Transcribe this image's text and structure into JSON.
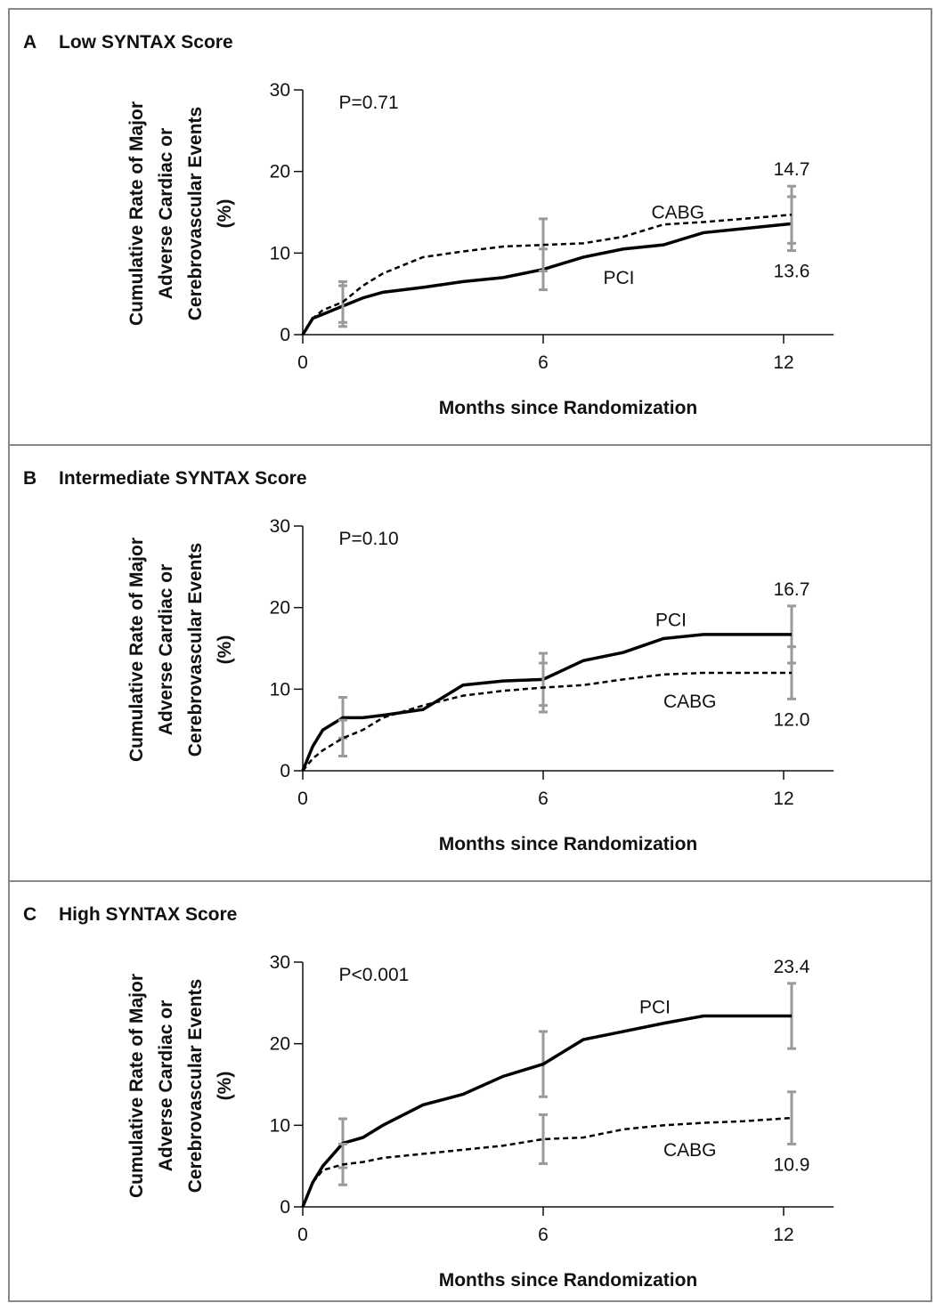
{
  "chart_data": [
    {
      "type": "line",
      "panel": "A",
      "title": "Low SYNTAX Score",
      "annotation": "P=0.71",
      "ylabel": [
        "Cumulative Rate of Major",
        "Adverse Cardiac or",
        "Cerebrovascular Events",
        "(%)"
      ],
      "xlabel": "Months since Randomization",
      "xlim": [
        0,
        13.25
      ],
      "xticks": [
        0,
        6,
        12
      ],
      "ylim": [
        0,
        30
      ],
      "yticks": [
        0,
        10,
        20,
        30
      ],
      "errorbar_color": "#9a9a9a",
      "x": [
        0,
        0.25,
        0.5,
        1,
        1.5,
        2,
        3,
        4,
        5,
        6,
        7,
        8,
        9,
        10,
        11,
        12.2
      ],
      "series": [
        {
          "name": "PCI",
          "color": "#000000",
          "line_style": "solid",
          "values": [
            0,
            2,
            2.5,
            3.5,
            4.5,
            5.2,
            5.8,
            6.5,
            7,
            8,
            9.5,
            10.5,
            11,
            12.5,
            13,
            13.6
          ],
          "errors": [
            null,
            null,
            null,
            2.5,
            null,
            null,
            null,
            null,
            null,
            2.5,
            null,
            null,
            null,
            null,
            null,
            3.3
          ],
          "value_labels": [
            null,
            null,
            null,
            null,
            null,
            null,
            null,
            null,
            null,
            null,
            null,
            null,
            null,
            null,
            null,
            "13.6"
          ]
        },
        {
          "name": "CABG",
          "color": "#000000",
          "line_style": "dashed",
          "values": [
            0,
            2,
            3,
            4,
            6,
            7.5,
            9.5,
            10.2,
            10.8,
            11,
            11.2,
            12,
            13.5,
            13.8,
            14.2,
            14.7
          ],
          "errors": [
            null,
            null,
            null,
            2.5,
            null,
            null,
            null,
            null,
            null,
            3.2,
            null,
            null,
            null,
            null,
            null,
            3.5
          ],
          "value_labels": [
            null,
            null,
            null,
            null,
            null,
            null,
            null,
            null,
            null,
            null,
            null,
            null,
            null,
            null,
            null,
            "14.7"
          ]
        }
      ]
    },
    {
      "type": "line",
      "panel": "B",
      "title": "Intermediate SYNTAX Score",
      "annotation": "P=0.10",
      "ylabel": [
        "Cumulative Rate of Major",
        "Adverse Cardiac or",
        "Cerebrovascular Events",
        "(%)"
      ],
      "xlabel": "Months since Randomization",
      "xlim": [
        0,
        13.25
      ],
      "xticks": [
        0,
        6,
        12
      ],
      "ylim": [
        0,
        30
      ],
      "yticks": [
        0,
        10,
        20,
        30
      ],
      "errorbar_color": "#9a9a9a",
      "x": [
        0,
        0.25,
        0.5,
        1,
        1.5,
        2,
        3,
        4,
        5,
        6,
        7,
        8,
        9,
        10,
        11,
        12.2
      ],
      "series": [
        {
          "name": "PCI",
          "color": "#000000",
          "line_style": "solid",
          "values": [
            0,
            3,
            5,
            6.5,
            6.5,
            6.8,
            7.5,
            10.5,
            11,
            11.2,
            13.5,
            14.5,
            16.2,
            16.7,
            16.7,
            16.7
          ],
          "errors": [
            null,
            null,
            null,
            2.5,
            null,
            null,
            null,
            null,
            null,
            3.2,
            null,
            null,
            null,
            null,
            null,
            3.5
          ],
          "value_labels": [
            null,
            null,
            null,
            null,
            null,
            null,
            null,
            null,
            null,
            null,
            null,
            null,
            null,
            null,
            null,
            "16.7"
          ]
        },
        {
          "name": "CABG",
          "color": "#000000",
          "line_style": "dashed",
          "values": [
            0,
            1.5,
            2.5,
            4,
            5,
            6.5,
            8,
            9.2,
            9.8,
            10.2,
            10.5,
            11.2,
            11.8,
            12,
            12,
            12
          ],
          "errors": [
            null,
            null,
            null,
            2.2,
            null,
            null,
            null,
            null,
            null,
            3,
            null,
            null,
            null,
            null,
            null,
            3.2
          ],
          "value_labels": [
            null,
            null,
            null,
            null,
            null,
            null,
            null,
            null,
            null,
            null,
            null,
            null,
            null,
            null,
            null,
            "12.0"
          ]
        }
      ]
    },
    {
      "type": "line",
      "panel": "C",
      "title": "High SYNTAX Score",
      "annotation": "P<0.001",
      "ylabel": [
        "Cumulative Rate of Major",
        "Adverse Cardiac or",
        "Cerebrovascular Events",
        "(%)"
      ],
      "xlabel": "Months since Randomization",
      "xlim": [
        0,
        13.25
      ],
      "xticks": [
        0,
        6,
        12
      ],
      "ylim": [
        0,
        30
      ],
      "yticks": [
        0,
        10,
        20,
        30
      ],
      "errorbar_color": "#9a9a9a",
      "x": [
        0,
        0.25,
        0.5,
        1,
        1.5,
        2,
        3,
        4,
        5,
        6,
        7,
        8,
        9,
        10,
        11,
        12.2
      ],
      "series": [
        {
          "name": "PCI",
          "color": "#000000",
          "line_style": "solid",
          "values": [
            0,
            3,
            5,
            7.8,
            8.5,
            10,
            12.5,
            13.8,
            16,
            17.5,
            20.5,
            21.5,
            22.5,
            23.4,
            23.4,
            23.4
          ],
          "errors": [
            null,
            null,
            null,
            3,
            null,
            null,
            null,
            null,
            null,
            4,
            null,
            null,
            null,
            null,
            null,
            4
          ],
          "value_labels": [
            null,
            null,
            null,
            null,
            null,
            null,
            null,
            null,
            null,
            null,
            null,
            null,
            null,
            null,
            null,
            "23.4"
          ]
        },
        {
          "name": "CABG",
          "color": "#000000",
          "line_style": "dashed",
          "values": [
            0,
            3,
            4.5,
            5.2,
            5.5,
            6,
            6.5,
            7,
            7.5,
            8.3,
            8.5,
            9.5,
            10,
            10.3,
            10.5,
            10.9
          ],
          "errors": [
            null,
            null,
            null,
            2.5,
            null,
            null,
            null,
            null,
            null,
            3,
            null,
            null,
            null,
            null,
            null,
            3.2
          ],
          "value_labels": [
            null,
            null,
            null,
            null,
            null,
            null,
            null,
            null,
            null,
            null,
            null,
            null,
            null,
            null,
            null,
            "10.9"
          ]
        }
      ]
    }
  ]
}
